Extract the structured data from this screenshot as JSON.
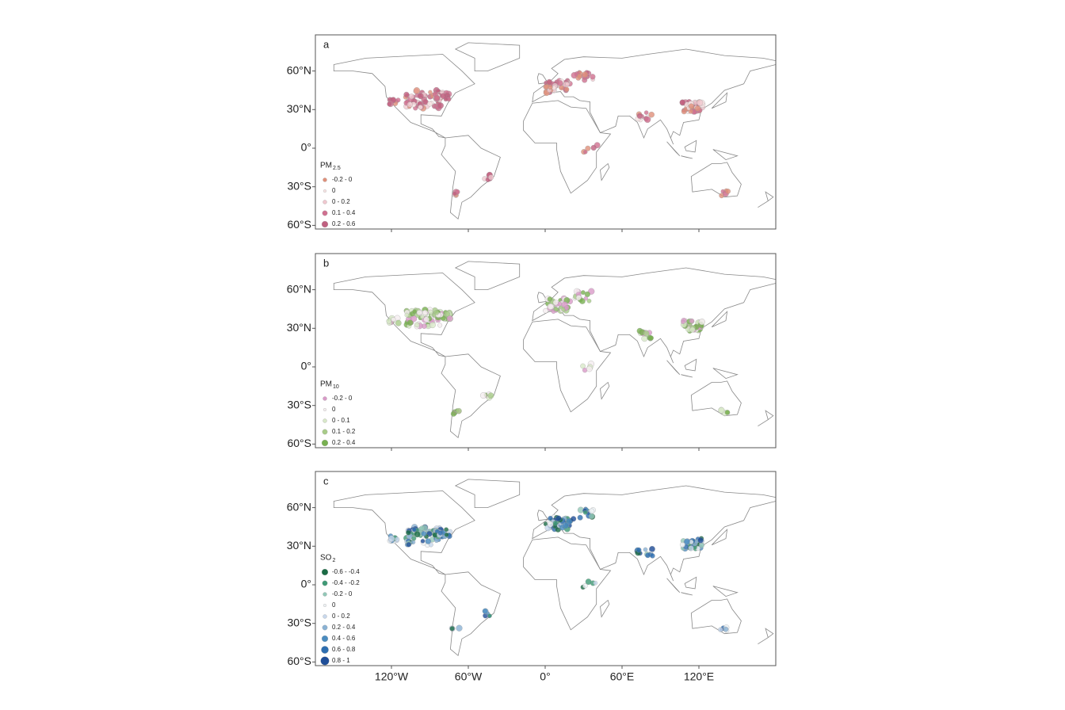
{
  "map": {
    "yticks": [
      {
        "value": 60,
        "label": "60°N"
      },
      {
        "value": 30,
        "label": "30°N"
      },
      {
        "value": 0,
        "label": "0°"
      },
      {
        "value": -30,
        "label": "30°S"
      },
      {
        "value": -60,
        "label": "60°S"
      }
    ],
    "xticks": [
      {
        "value": -120,
        "label": "120°W"
      },
      {
        "value": -60,
        "label": "60°W"
      },
      {
        "value": 0,
        "label": "0°"
      },
      {
        "value": 60,
        "label": "60°E"
      },
      {
        "value": 120,
        "label": "120°E"
      }
    ],
    "panels": [
      {
        "label": "a",
        "title": "PM",
        "title_sub": "2.5",
        "legend": [
          {
            "label": "-0.2 - 0",
            "color": "#e0907a"
          },
          {
            "label": "0",
            "color": "#f7e4e4"
          },
          {
            "label": "0 - 0.2",
            "color": "#f0c8cf"
          },
          {
            "label": "0.1 - 0.4",
            "color": "#d07090"
          },
          {
            "label": "0.2 - 0.6",
            "color": "#c06080"
          }
        ]
      },
      {
        "label": "b",
        "title": "PM",
        "title_sub": "10",
        "legend": [
          {
            "label": "-0.2 - 0",
            "color": "#d99ac8"
          },
          {
            "label": "0",
            "color": "#f5eef0"
          },
          {
            "label": "0 - 0.1",
            "color": "#d8e8c8"
          },
          {
            "label": "0.1 - 0.2",
            "color": "#a8cc88"
          },
          {
            "label": "0.2 - 0.4",
            "color": "#78b050"
          }
        ]
      },
      {
        "label": "c",
        "title": "SO",
        "title_sub": "2",
        "legend": [
          {
            "label": "-0.6 - -0.4",
            "color": "#1a6b45"
          },
          {
            "label": "-0.4 - -0.2",
            "color": "#3f9a76"
          },
          {
            "label": "-0.2 - 0",
            "color": "#92c8b8"
          },
          {
            "label": "0",
            "color": "#eef2f5"
          },
          {
            "label": "0 - 0.2",
            "color": "#c8d8ec"
          },
          {
            "label": "0.2 - 0.4",
            "color": "#8ab2d4"
          },
          {
            "label": "0.4 - 0.6",
            "color": "#4a8cc0"
          },
          {
            "label": "0.6 - 0.8",
            "color": "#2e6eb0"
          },
          {
            "label": "0.8 - 1",
            "color": "#1f4e98"
          }
        ]
      }
    ]
  }
}
